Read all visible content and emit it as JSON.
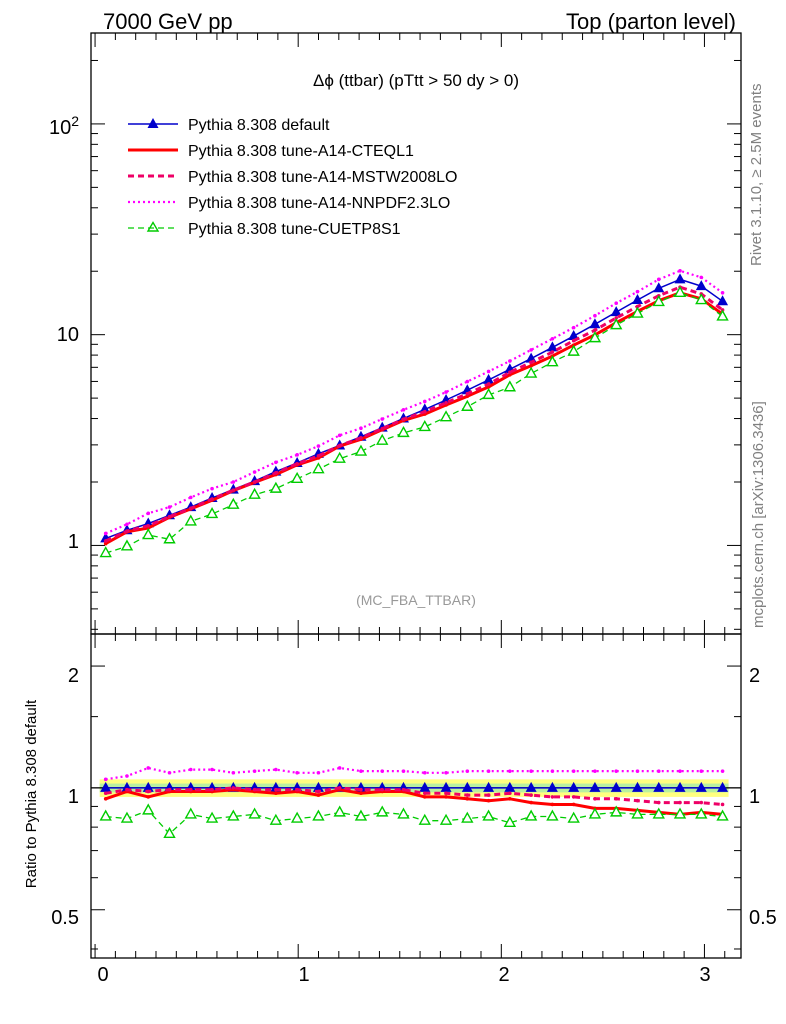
{
  "header": {
    "left": "7000 GeV pp",
    "right": "Top (parton level)"
  },
  "side_labels": {
    "rivet": "Rivet 3.1.10, ≥ 2.5M events",
    "mcplots": "mcplots.cern.ch [arXiv:1306.3436]"
  },
  "chart_data": {
    "type": "line",
    "title": "Δϕ (ttbar) (pTtt > 50 dy > 0)",
    "analysis_tag": "(MC_FBA_TTBAR)",
    "xlabel": "",
    "ylabel": "",
    "ratio_ylabel": "Ratio to Pythia 8.308 default",
    "xlim": [
      -0.02,
      3.18
    ],
    "ylim": [
      0.38,
      270
    ],
    "ylog": true,
    "ratio_ylim": [
      0.38,
      2.4
    ],
    "ratio_ylog": true,
    "legend_position": "top-left",
    "x_ticks": [
      "0",
      "1",
      "2",
      "3"
    ],
    "y_ticks": [
      "1",
      "10",
      "10^2"
    ],
    "ratio_y_ticks": [
      "0.5",
      "1",
      "2"
    ],
    "x": [
      0.0523,
      0.1571,
      0.2618,
      0.3665,
      0.4712,
      0.576,
      0.6807,
      0.7854,
      0.8901,
      0.9948,
      1.0996,
      1.2043,
      1.309,
      1.4137,
      1.5184,
      1.6232,
      1.7279,
      1.8326,
      1.9373,
      2.042,
      2.1468,
      2.2515,
      2.3562,
      2.4609,
      2.5656,
      2.6704,
      2.7751,
      2.8798,
      2.9845,
      3.0892
    ],
    "series": [
      {
        "name": "Pythia 8.308 default",
        "color": "#0000cc",
        "values": [
          1.08,
          1.18,
          1.27,
          1.39,
          1.52,
          1.68,
          1.84,
          2.02,
          2.24,
          2.46,
          2.72,
          2.98,
          3.28,
          3.62,
          4.0,
          4.42,
          4.9,
          5.45,
          6.1,
          6.85,
          7.7,
          8.7,
          9.85,
          11.2,
          12.8,
          14.6,
          16.6,
          18.3,
          17.0,
          14.4
        ],
        "ratio": [
          1.0,
          1.0,
          1.0,
          1.0,
          1.0,
          1.0,
          1.0,
          1.0,
          1.0,
          1.0,
          1.0,
          1.0,
          1.0,
          1.0,
          1.0,
          1.0,
          1.0,
          1.0,
          1.0,
          1.0,
          1.0,
          1.0,
          1.0,
          1.0,
          1.0,
          1.0,
          1.0,
          1.0,
          1.0,
          1.0
        ]
      },
      {
        "name": "Pythia 8.308 tune-A14-CTEQL1",
        "color": "#ff0000",
        "values": [
          1.02,
          1.16,
          1.21,
          1.36,
          1.49,
          1.64,
          1.82,
          1.99,
          2.17,
          2.41,
          2.6,
          2.96,
          3.19,
          3.54,
          3.92,
          4.2,
          4.64,
          5.1,
          5.65,
          6.45,
          7.12,
          7.91,
          8.92,
          9.98,
          11.4,
          12.9,
          14.5,
          15.8,
          14.8,
          12.5
        ],
        "ratio": [
          0.94,
          0.98,
          0.95,
          0.98,
          0.98,
          0.98,
          0.99,
          0.98,
          0.97,
          0.98,
          0.96,
          0.99,
          0.97,
          0.98,
          0.98,
          0.95,
          0.95,
          0.94,
          0.93,
          0.94,
          0.92,
          0.91,
          0.91,
          0.89,
          0.89,
          0.88,
          0.87,
          0.86,
          0.87,
          0.86
        ]
      },
      {
        "name": "Pythia 8.308 tune-A14-MSTW2008LO",
        "color": "#ee0066",
        "values": [
          1.05,
          1.17,
          1.24,
          1.37,
          1.5,
          1.66,
          1.83,
          2.0,
          2.21,
          2.44,
          2.66,
          2.98,
          3.24,
          3.58,
          3.97,
          4.31,
          4.75,
          5.24,
          5.83,
          6.63,
          7.39,
          8.27,
          9.36,
          10.5,
          12.0,
          13.6,
          15.3,
          16.8,
          15.6,
          13.1
        ],
        "ratio": [
          0.97,
          0.99,
          0.98,
          0.99,
          0.99,
          0.99,
          1.0,
          0.99,
          0.99,
          0.99,
          0.98,
          1.0,
          0.99,
          0.99,
          0.99,
          0.97,
          0.97,
          0.96,
          0.96,
          0.97,
          0.96,
          0.95,
          0.95,
          0.94,
          0.94,
          0.93,
          0.92,
          0.92,
          0.92,
          0.91
        ]
      },
      {
        "name": "Pythia 8.308 tune-A14-NNPDF2.3LO",
        "color": "#ff00ff",
        "values": [
          1.14,
          1.26,
          1.42,
          1.52,
          1.69,
          1.86,
          2.0,
          2.23,
          2.48,
          2.69,
          2.96,
          3.33,
          3.6,
          3.98,
          4.4,
          4.82,
          5.34,
          5.99,
          6.69,
          7.5,
          8.47,
          9.56,
          10.8,
          12.3,
          14.1,
          16.0,
          18.3,
          20.1,
          18.7,
          15.8
        ],
        "ratio": [
          1.05,
          1.07,
          1.12,
          1.09,
          1.11,
          1.11,
          1.09,
          1.1,
          1.11,
          1.09,
          1.09,
          1.12,
          1.1,
          1.1,
          1.1,
          1.09,
          1.09,
          1.1,
          1.1,
          1.1,
          1.1,
          1.1,
          1.1,
          1.1,
          1.1,
          1.1,
          1.1,
          1.1,
          1.1,
          1.1
        ]
      },
      {
        "name": "Pythia 8.308 tune-CUETP8S1",
        "color": "#00cc00",
        "values": [
          0.92,
          0.99,
          1.12,
          1.07,
          1.3,
          1.41,
          1.56,
          1.74,
          1.86,
          2.07,
          2.3,
          2.58,
          2.79,
          3.14,
          3.42,
          3.65,
          4.06,
          4.55,
          5.18,
          5.63,
          6.54,
          7.4,
          8.31,
          9.63,
          11.1,
          12.6,
          14.3,
          15.8,
          14.6,
          12.2
        ],
        "ratio": [
          0.85,
          0.84,
          0.88,
          0.77,
          0.86,
          0.84,
          0.85,
          0.86,
          0.83,
          0.84,
          0.85,
          0.87,
          0.85,
          0.87,
          0.86,
          0.83,
          0.83,
          0.84,
          0.85,
          0.82,
          0.85,
          0.85,
          0.84,
          0.86,
          0.87,
          0.86,
          0.86,
          0.86,
          0.86,
          0.85
        ]
      }
    ]
  }
}
